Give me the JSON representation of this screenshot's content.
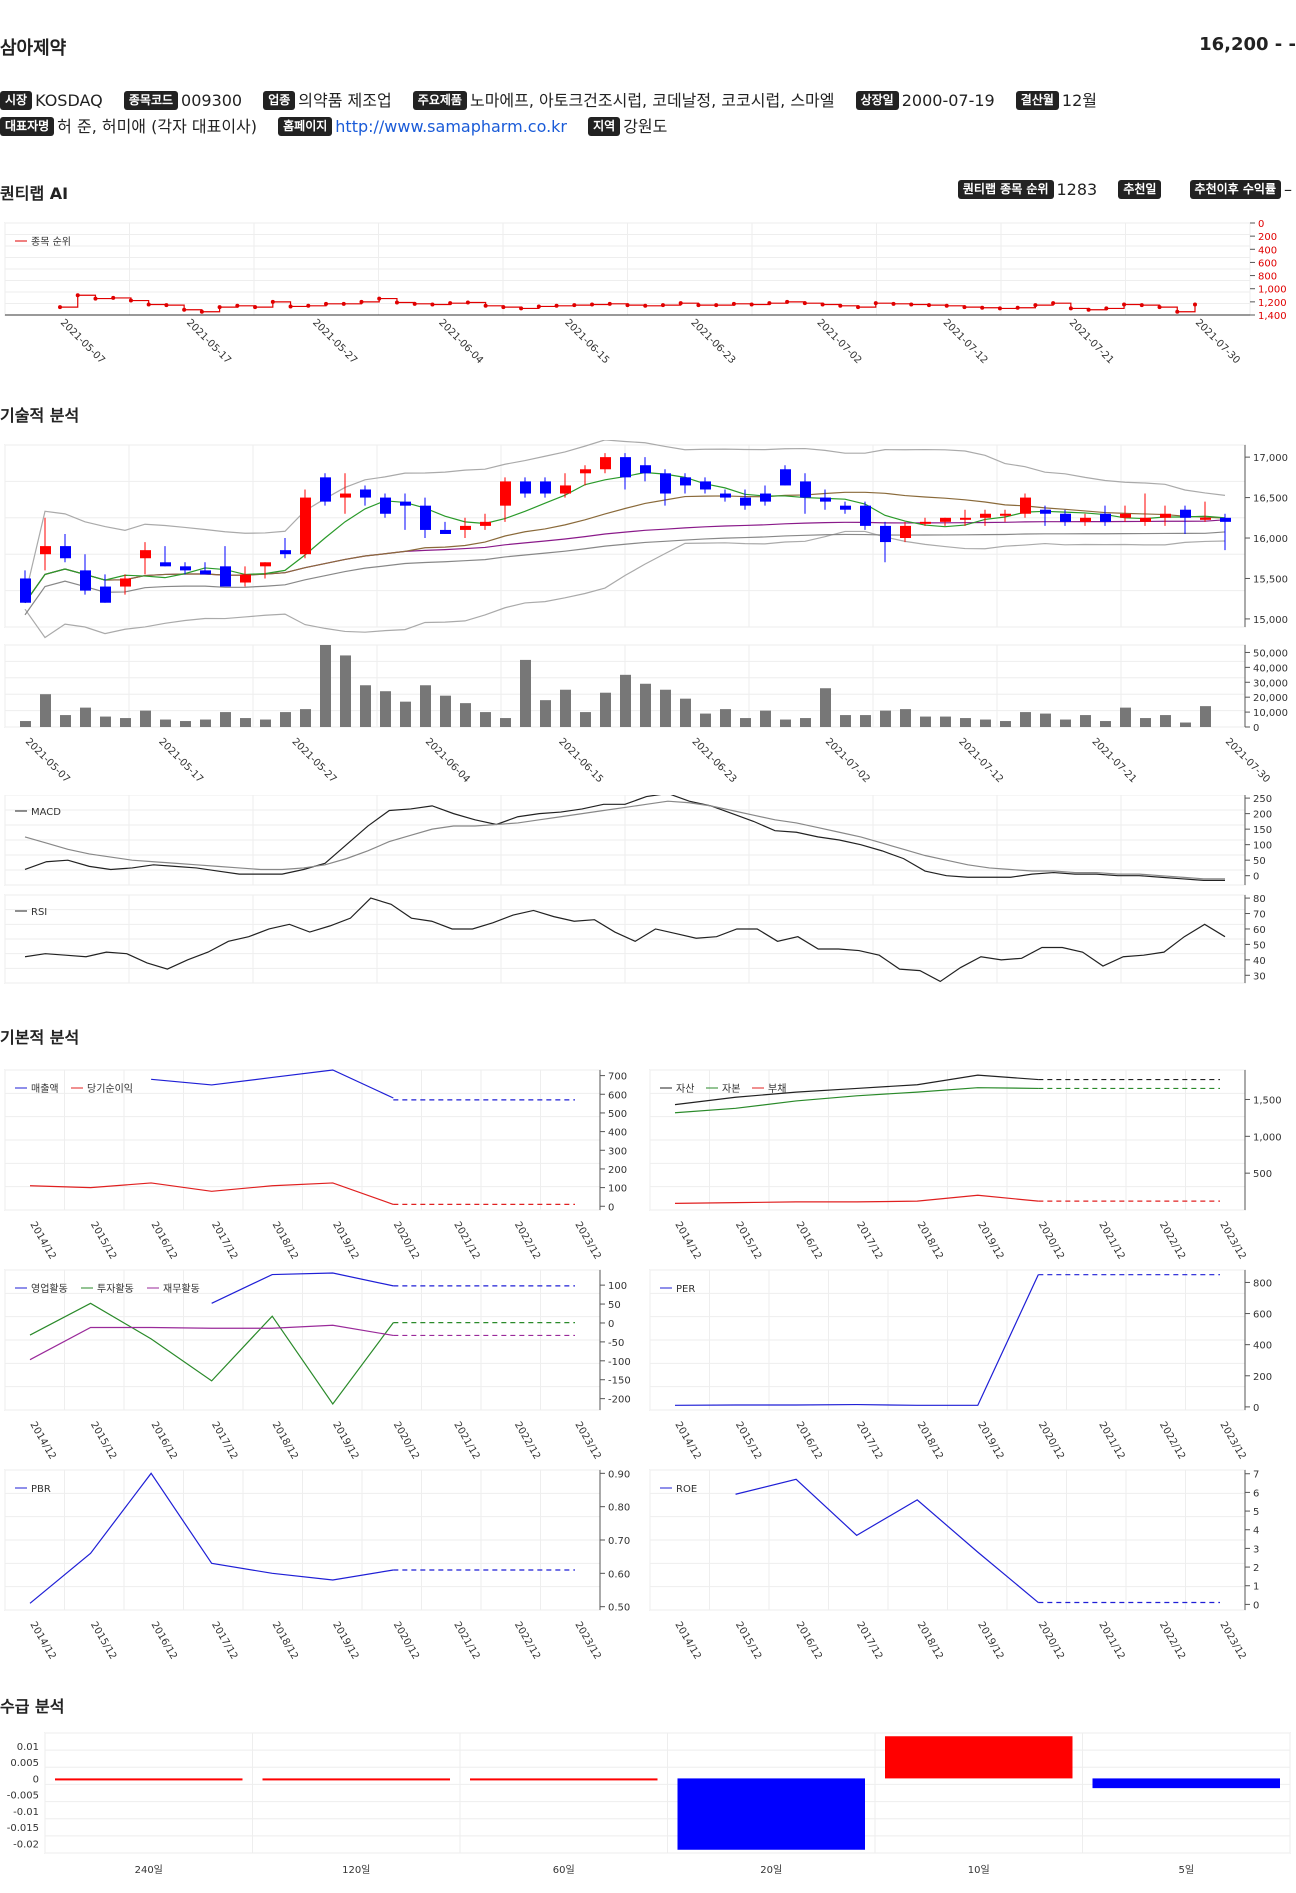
{
  "header": {
    "title": "삼아제약",
    "price": "16,200 - -"
  },
  "info": {
    "market_tag": "시장",
    "market": "KOSDAQ",
    "code_tag": "종목코드",
    "code": "009300",
    "industry_tag": "업종",
    "industry": "의약품 제조업",
    "products_tag": "주요제품",
    "products": "노마에프, 아토크건조시럽, 코데날정, 코코시럽, 스마엘",
    "listed_tag": "상장일",
    "listed": "2000-07-19",
    "fiscal_tag": "결산월",
    "fiscal": "12월",
    "ceo_tag": "대표자명",
    "ceo": "허 준, 허미애 (각자 대표이사)",
    "homepage_tag": "홈페이지",
    "homepage": "http://www.samapharm.co.kr",
    "region_tag": "지역",
    "region": "강원도"
  },
  "quantilab": {
    "title": "퀀티랩 AI",
    "rank_tag": "퀀티랩 종목 순위",
    "rank": "1283",
    "rec_date_tag": "추천일",
    "rec_return_tag": "추천이후 수익률",
    "rec_return": "–",
    "legend": "종목 순위",
    "yticks": [
      "0",
      "200",
      "400",
      "600",
      "800",
      "1,000",
      "1,200",
      "1,400"
    ],
    "color": "#e00000"
  },
  "sections": {
    "technical": "기술적 분석",
    "fundamental": "기본적 분석",
    "supply": "수급 분석"
  },
  "dates": [
    "2021-05-07",
    "2021-05-17",
    "2021-05-27",
    "2021-06-04",
    "2021-06-15",
    "2021-06-23",
    "2021-07-02",
    "2021-07-12",
    "2021-07-21",
    "2021-07-30"
  ],
  "years": [
    "2014/12",
    "2015/12",
    "2016/12",
    "2017/12",
    "2018/12",
    "2019/12",
    "2020/12",
    "2021/12",
    "2022/12",
    "2023/12"
  ],
  "chart_data": [
    {
      "type": "line",
      "name": "rank",
      "values": [
        1280,
        1100,
        1150,
        1140,
        1180,
        1240,
        1250,
        1320,
        1350,
        1280,
        1260,
        1280,
        1200,
        1270,
        1260,
        1230,
        1230,
        1200,
        1150,
        1210,
        1230,
        1240,
        1220,
        1210,
        1260,
        1280,
        1300,
        1270,
        1260,
        1250,
        1240,
        1230,
        1250,
        1260,
        1250,
        1220,
        1250,
        1250,
        1230,
        1240,
        1220,
        1200,
        1220,
        1240,
        1260,
        1280,
        1220,
        1230,
        1240,
        1250,
        1260,
        1280,
        1290,
        1300,
        1290,
        1250,
        1220,
        1300,
        1320,
        1300,
        1240,
        1250,
        1280,
        1350,
        1240
      ],
      "ylim": [
        0,
        1400
      ]
    },
    {
      "type": "candlestick",
      "name": "price",
      "yticks": [
        "17,000",
        "16,500",
        "16,000",
        "15,500",
        "15,000"
      ],
      "ylim": [
        14900,
        17150
      ],
      "ohlc": [
        [
          15500,
          15600,
          15200,
          15200
        ],
        [
          15800,
          16250,
          15600,
          15900
        ],
        [
          15900,
          16050,
          15700,
          15750
        ],
        [
          15600,
          15800,
          15300,
          15350
        ],
        [
          15400,
          15550,
          15200,
          15200
        ],
        [
          15400,
          15550,
          15300,
          15500
        ],
        [
          15750,
          15950,
          15550,
          15850
        ],
        [
          15700,
          15900,
          15650,
          15650
        ],
        [
          15650,
          15700,
          15550,
          15600
        ],
        [
          15600,
          15700,
          15550,
          15550
        ],
        [
          15650,
          15900,
          15400,
          15400
        ],
        [
          15450,
          15650,
          15400,
          15550
        ],
        [
          15650,
          15700,
          15500,
          15700
        ],
        [
          15850,
          16000,
          15750,
          15800
        ],
        [
          15800,
          16600,
          15750,
          16500
        ],
        [
          16750,
          16800,
          16400,
          16450
        ],
        [
          16500,
          16800,
          16300,
          16550
        ],
        [
          16600,
          16650,
          16400,
          16500
        ],
        [
          16500,
          16550,
          16250,
          16300
        ],
        [
          16450,
          16550,
          16100,
          16400
        ],
        [
          16400,
          16500,
          16000,
          16100
        ],
        [
          16100,
          16200,
          16050,
          16050
        ],
        [
          16100,
          16250,
          16000,
          16150
        ],
        [
          16150,
          16300,
          16100,
          16200
        ],
        [
          16400,
          16750,
          16200,
          16700
        ],
        [
          16700,
          16750,
          16500,
          16550
        ],
        [
          16700,
          16750,
          16500,
          16550
        ],
        [
          16550,
          16800,
          16500,
          16650
        ],
        [
          16800,
          16900,
          16650,
          16850
        ],
        [
          16850,
          17050,
          16800,
          17000
        ],
        [
          17000,
          17050,
          16600,
          16750
        ],
        [
          16900,
          17000,
          16700,
          16800
        ],
        [
          16800,
          16850,
          16400,
          16550
        ],
        [
          16750,
          16800,
          16550,
          16650
        ],
        [
          16700,
          16750,
          16550,
          16600
        ],
        [
          16550,
          16600,
          16450,
          16500
        ],
        [
          16500,
          16600,
          16350,
          16400
        ],
        [
          16550,
          16650,
          16400,
          16450
        ],
        [
          16850,
          16900,
          16650,
          16650
        ],
        [
          16700,
          16800,
          16300,
          16500
        ],
        [
          16500,
          16600,
          16350,
          16450
        ],
        [
          16400,
          16450,
          16300,
          16350
        ],
        [
          16400,
          16450,
          16100,
          16150
        ],
        [
          16150,
          16200,
          15700,
          15950
        ],
        [
          16000,
          16200,
          15950,
          16150
        ],
        [
          16200,
          16250,
          16150,
          16200
        ],
        [
          16200,
          16250,
          16150,
          16250
        ],
        [
          16250,
          16350,
          16150,
          16250
        ],
        [
          16250,
          16350,
          16150,
          16300
        ],
        [
          16300,
          16350,
          16200,
          16300
        ],
        [
          16300,
          16550,
          16250,
          16500
        ],
        [
          16350,
          16400,
          16150,
          16300
        ],
        [
          16300,
          16350,
          16150,
          16200
        ],
        [
          16200,
          16300,
          16150,
          16250
        ],
        [
          16300,
          16400,
          16150,
          16200
        ],
        [
          16250,
          16400,
          16200,
          16300
        ],
        [
          16200,
          16550,
          16150,
          16250
        ],
        [
          16250,
          16400,
          16150,
          16300
        ],
        [
          16350,
          16400,
          16050,
          16250
        ],
        [
          16250,
          16450,
          16200,
          16250
        ],
        [
          16250,
          16300,
          15850,
          16200
        ]
      ]
    },
    {
      "type": "bar",
      "name": "volume",
      "yticks": [
        "50,000",
        "40,000",
        "30,000",
        "20,000",
        "10,000",
        "0"
      ],
      "ylim": [
        0,
        55000
      ],
      "values": [
        4000,
        22000,
        8000,
        13000,
        7000,
        6000,
        11000,
        5000,
        4000,
        5000,
        10000,
        6000,
        5000,
        10000,
        12000,
        55000,
        48000,
        28000,
        24000,
        17000,
        28000,
        21000,
        16000,
        10000,
        6000,
        45000,
        18000,
        25000,
        10000,
        23000,
        35000,
        29000,
        25000,
        19000,
        9000,
        12000,
        6000,
        11000,
        5000,
        6000,
        26000,
        8000,
        8000,
        11000,
        12000,
        7000,
        7000,
        6000,
        5000,
        4000,
        10000,
        9000,
        5000,
        8000,
        4000,
        13000,
        6000,
        8000,
        3000,
        14000
      ]
    },
    {
      "type": "line",
      "name": "MACD",
      "yticks": [
        "250",
        "200",
        "150",
        "100",
        "50",
        "0"
      ],
      "ylim": [
        -30,
        260
      ],
      "series": [
        {
          "name": "MACD",
          "color": "#222",
          "values": [
            20,
            45,
            50,
            30,
            20,
            25,
            35,
            30,
            25,
            15,
            5,
            5,
            5,
            20,
            40,
            100,
            160,
            210,
            215,
            225,
            200,
            180,
            165,
            190,
            200,
            205,
            215,
            230,
            230,
            255,
            265,
            240,
            225,
            200,
            175,
            145,
            140,
            125,
            115,
            100,
            80,
            55,
            15,
            0,
            -5,
            -5,
            -5,
            5,
            10,
            5,
            5,
            0,
            0,
            -5,
            -10,
            -15,
            -15
          ]
        },
        {
          "name": "signal",
          "color": "#888",
          "values": [
            125,
            105,
            85,
            70,
            60,
            50,
            45,
            40,
            35,
            30,
            25,
            20,
            20,
            25,
            35,
            55,
            80,
            110,
            130,
            150,
            160,
            160,
            165,
            170,
            180,
            190,
            200,
            210,
            220,
            230,
            240,
            235,
            225,
            210,
            195,
            180,
            170,
            155,
            140,
            125,
            105,
            85,
            65,
            50,
            35,
            25,
            20,
            15,
            15,
            10,
            10,
            5,
            5,
            0,
            -5,
            -10,
            -10
          ]
        }
      ]
    },
    {
      "type": "line",
      "name": "RSI",
      "yticks": [
        "80",
        "70",
        "60",
        "50",
        "40",
        "30"
      ],
      "ylim": [
        25,
        82
      ],
      "values": [
        42,
        44,
        43,
        42,
        45,
        44,
        38,
        34,
        40,
        45,
        52,
        55,
        60,
        63,
        58,
        62,
        67,
        80,
        76,
        67,
        65,
        60,
        60,
        64,
        69,
        72,
        68,
        65,
        66,
        58,
        52,
        60,
        57,
        54,
        55,
        60,
        60,
        52,
        55,
        47,
        47,
        46,
        43,
        34,
        33,
        26,
        35,
        42,
        40,
        41,
        48,
        48,
        45,
        36,
        42,
        43,
        45,
        55,
        63,
        55
      ]
    }
  ],
  "fundamentals": [
    {
      "name": "revenue_profit",
      "legend": [
        "매출액",
        "당기순이익"
      ],
      "colors": [
        "#1f1fd6",
        "#e02020"
      ],
      "yticks": [
        "700",
        "600",
        "500",
        "400",
        "300",
        "200",
        "100",
        "0"
      ],
      "ylim": [
        -20,
        730
      ],
      "series": [
        [
          null,
          null,
          680,
          650,
          690,
          730,
          580
        ],
        [
          110,
          100,
          125,
          80,
          110,
          125,
          10
        ]
      ],
      "projection": [
        570,
        10
      ]
    },
    {
      "name": "assets",
      "legend": [
        "자산",
        "자본",
        "부채"
      ],
      "colors": [
        "#222",
        "#2a8a2a",
        "#e02020"
      ],
      "yticks": [
        "1,500",
        "1,000",
        "500"
      ],
      "ylim": [
        0,
        1900
      ],
      "series": [
        [
          1430,
          1530,
          1600,
          1650,
          1700,
          1830,
          1770
        ],
        [
          1320,
          1380,
          1480,
          1550,
          1600,
          1660,
          1650
        ],
        [
          90,
          100,
          110,
          110,
          120,
          200,
          120
        ]
      ],
      "projection": [
        1770,
        1650,
        120
      ]
    },
    {
      "name": "cashflow",
      "legend": [
        "영업활동",
        "투자활동",
        "재무활동"
      ],
      "colors": [
        "#1f1fd6",
        "#2a8a2a",
        "#9a2a9a"
      ],
      "yticks": [
        "100",
        "50",
        "0",
        "-50",
        "-100",
        "-150",
        "-200"
      ],
      "ylim": [
        -230,
        140
      ],
      "series": [
        [
          null,
          null,
          null,
          52,
          128,
          132,
          98
        ],
        [
          -32,
          52,
          -42,
          -153,
          18,
          -214,
          1
        ],
        [
          -97,
          -12,
          -12,
          -14,
          -14,
          -6,
          -33
        ]
      ],
      "projection": [
        98,
        1,
        -33
      ]
    },
    {
      "name": "PER",
      "legend": [
        "PER"
      ],
      "colors": [
        "#1f1fd6"
      ],
      "yticks": [
        "800",
        "600",
        "400",
        "200",
        "0"
      ],
      "ylim": [
        -20,
        880
      ],
      "series": [
        [
          10,
          12,
          12,
          15,
          10,
          10,
          850
        ]
      ],
      "projection": [
        850
      ]
    },
    {
      "name": "PBR",
      "legend": [
        "PBR"
      ],
      "colors": [
        "#1f1fd6"
      ],
      "yticks": [
        "0.90",
        "0.80",
        "0.70",
        "0.60",
        "0.50"
      ],
      "ylim": [
        0.49,
        0.91
      ],
      "series": [
        [
          0.51,
          0.66,
          0.9,
          0.63,
          0.6,
          0.58,
          0.61
        ]
      ],
      "projection": [
        0.61
      ]
    },
    {
      "name": "ROE",
      "legend": [
        "ROE"
      ],
      "colors": [
        "#1f1fd6"
      ],
      "yticks": [
        "7",
        "6",
        "5",
        "4",
        "3",
        "2",
        "1",
        "0"
      ],
      "ylim": [
        -0.3,
        7.2
      ],
      "series": [
        [
          null,
          5.9,
          6.7,
          3.7,
          5.6,
          2.8,
          0.1
        ]
      ],
      "projection": [
        0.1
      ]
    }
  ],
  "supply": {
    "type": "bar",
    "categories": [
      "240일",
      "120일",
      "60일",
      "20일",
      "10일",
      "5일"
    ],
    "values": [
      0,
      0,
      0,
      -0.022,
      0.013,
      -0.003
    ],
    "yticks": [
      "0.01",
      "0.005",
      "0",
      "-0.005",
      "-0.01",
      "-0.015",
      "-0.02"
    ],
    "ylim": [
      -0.023,
      0.014
    ],
    "pos_color": "#ff0000",
    "neg_color": "#0000ff"
  }
}
